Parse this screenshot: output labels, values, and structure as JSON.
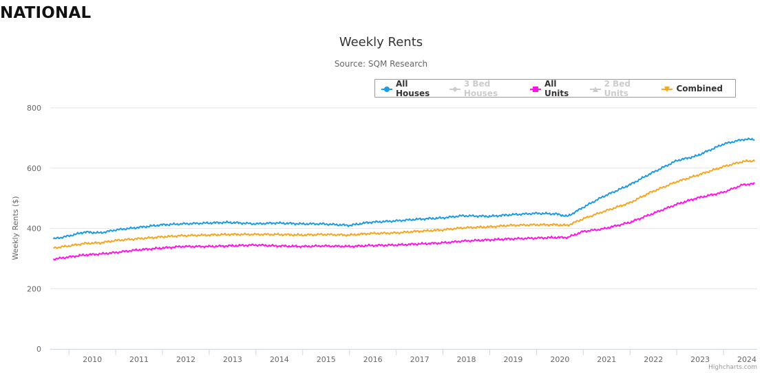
{
  "page": {
    "heading": "NATIONAL"
  },
  "credits": "Highcharts.com",
  "chart_data": {
    "type": "line",
    "title": "Weekly Rents",
    "subtitle": "Source: SQM Research",
    "ylabel": "Weekly Rents ($)",
    "xlabel": "",
    "ylim": [
      0,
      800
    ],
    "y_ticks": [
      "0",
      "200",
      "400",
      "600",
      "800"
    ],
    "x_ticks": [
      "2010",
      "2011",
      "2012",
      "2013",
      "2014",
      "2015",
      "2016",
      "2017",
      "2018",
      "2019",
      "2020",
      "2021",
      "2022",
      "2023",
      "2024"
    ],
    "grid": "horizontal",
    "legend_position": "top-right",
    "series": [
      {
        "name": "All Houses",
        "color": "#1c9be6",
        "marker": "circle",
        "visible": true,
        "x": [
          "2009-09",
          "2010-01",
          "2010-05",
          "2010-09",
          "2011-01",
          "2011-06",
          "2012-01",
          "2012-06",
          "2013-01",
          "2013-06",
          "2014-01",
          "2014-06",
          "2015-01",
          "2015-06",
          "2016-01",
          "2016-06",
          "2017-01",
          "2017-06",
          "2018-01",
          "2018-06",
          "2019-01",
          "2019-06",
          "2020-01",
          "2020-06",
          "2020-09",
          "2021-01",
          "2021-06",
          "2022-01",
          "2022-06",
          "2023-01",
          "2023-06",
          "2024-01",
          "2024-06",
          "2024-09"
        ],
        "values": [
          365,
          375,
          388,
          385,
          395,
          402,
          412,
          415,
          418,
          420,
          415,
          418,
          415,
          415,
          410,
          420,
          425,
          430,
          435,
          442,
          440,
          445,
          450,
          448,
          440,
          470,
          505,
          545,
          580,
          625,
          640,
          680,
          695,
          696
        ]
      },
      {
        "name": "3 Bed Houses",
        "color": "#cccccc",
        "marker": "diamond",
        "visible": false,
        "x": [],
        "values": []
      },
      {
        "name": "All Units",
        "color": "#ff14e8",
        "marker": "square",
        "visible": true,
        "x": [
          "2009-09",
          "2010-01",
          "2010-05",
          "2010-09",
          "2011-01",
          "2011-06",
          "2012-01",
          "2012-06",
          "2013-01",
          "2013-06",
          "2014-01",
          "2014-06",
          "2015-01",
          "2015-06",
          "2016-01",
          "2016-06",
          "2017-01",
          "2017-06",
          "2018-01",
          "2018-06",
          "2019-01",
          "2019-06",
          "2020-01",
          "2020-06",
          "2020-09",
          "2021-01",
          "2021-06",
          "2022-01",
          "2022-06",
          "2023-01",
          "2023-06",
          "2024-01",
          "2024-06",
          "2024-09"
        ],
        "values": [
          298,
          305,
          312,
          315,
          320,
          328,
          335,
          340,
          340,
          342,
          345,
          342,
          340,
          342,
          340,
          343,
          345,
          348,
          352,
          358,
          362,
          365,
          368,
          370,
          370,
          390,
          398,
          420,
          445,
          480,
          500,
          520,
          545,
          548
        ]
      },
      {
        "name": "2 Bed Units",
        "color": "#cccccc",
        "marker": "triangle",
        "visible": false,
        "x": [],
        "values": []
      },
      {
        "name": "Combined",
        "color": "#f5a623",
        "marker": "triangle-down",
        "visible": true,
        "x": [
          "2009-09",
          "2010-01",
          "2010-05",
          "2010-09",
          "2011-01",
          "2011-06",
          "2012-01",
          "2012-06",
          "2013-01",
          "2013-06",
          "2014-01",
          "2014-06",
          "2015-01",
          "2015-06",
          "2016-01",
          "2016-06",
          "2017-01",
          "2017-06",
          "2018-01",
          "2018-06",
          "2019-01",
          "2019-06",
          "2020-01",
          "2020-06",
          "2020-09",
          "2021-01",
          "2021-06",
          "2022-01",
          "2022-06",
          "2023-01",
          "2023-06",
          "2024-01",
          "2024-06",
          "2024-09"
        ],
        "values": [
          335,
          342,
          350,
          352,
          360,
          365,
          372,
          376,
          378,
          380,
          380,
          380,
          378,
          380,
          378,
          383,
          385,
          390,
          395,
          402,
          405,
          410,
          412,
          412,
          410,
          432,
          455,
          485,
          518,
          555,
          575,
          605,
          622,
          625
        ]
      }
    ]
  }
}
